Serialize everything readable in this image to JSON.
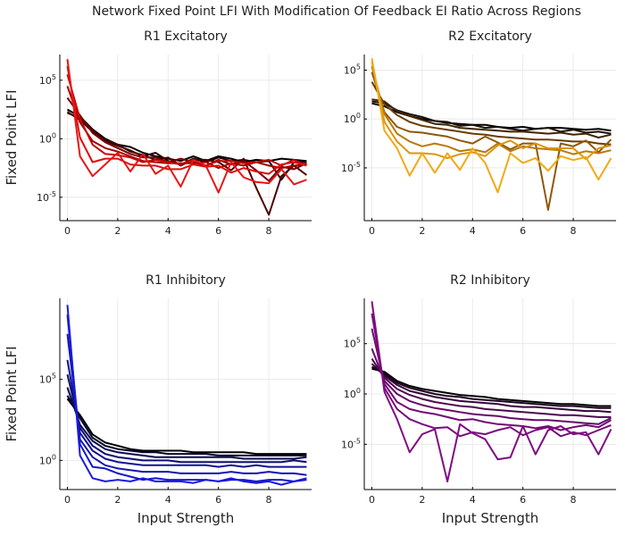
{
  "figure_title": "Network Fixed Point LFI With Modification Of Feedback EI Ratio Across Regions",
  "chart_data": [
    {
      "type": "line",
      "title": "R1 Excitatory",
      "xlabel": "",
      "ylabel": "Fixed Point LFI",
      "yscale": "log10",
      "xlim": [
        -0.3,
        9.7
      ],
      "ylim_log10": [
        -7.0,
        7.2
      ],
      "xticks": [
        "0",
        "2",
        "4",
        "6",
        "8"
      ],
      "yticks": [
        "10^5",
        "10^0",
        "10^-5"
      ],
      "grid": true,
      "x": [
        0,
        0.5,
        1,
        1.5,
        2,
        2.5,
        3,
        3.5,
        4,
        4.5,
        5,
        5.5,
        6,
        6.5,
        7,
        7.5,
        8,
        8.5,
        9,
        9.5
      ],
      "series": [
        {
          "color": "#000000",
          "log10_values": [
            2.5,
            1.9,
            0.8,
            0.0,
            -0.5,
            -0.7,
            -1.2,
            -1.5,
            -1.7,
            -1.9,
            -1.5,
            -1.9,
            -1.5,
            -1.7,
            -2.0,
            -1.8,
            -1.9,
            -1.7,
            -1.8,
            -1.9
          ]
        },
        {
          "color": "#2a0303",
          "log10_values": [
            2.3,
            1.6,
            0.6,
            -0.2,
            -0.6,
            -1.0,
            -1.5,
            -1.2,
            -1.9,
            -2.2,
            -1.7,
            -2.0,
            -1.6,
            -1.9,
            -1.8,
            -2.0,
            -1.9,
            -3.5,
            -2.0,
            -2.0
          ]
        },
        {
          "color": "#4b0000",
          "log10_values": [
            2.2,
            1.8,
            0.7,
            -0.1,
            -0.5,
            -1.1,
            -1.4,
            -1.8,
            -1.6,
            -2.3,
            -1.8,
            -1.8,
            -2.0,
            -2.7,
            -1.7,
            -4.2,
            -6.5,
            -3.2,
            -2.3,
            -3.1
          ]
        },
        {
          "color": "#7a0000",
          "log10_values": [
            3.5,
            2.0,
            0.5,
            -0.3,
            -0.8,
            -1.3,
            -1.6,
            -1.6,
            -2.0,
            -1.7,
            -2.0,
            -2.3,
            -1.8,
            -2.2,
            -1.9,
            -2.7,
            -3.6,
            -2.4,
            -2.6,
            -2.1
          ]
        },
        {
          "color": "#a30000",
          "log10_values": [
            4.5,
            1.4,
            -0.2,
            -0.8,
            -1.1,
            -1.5,
            -1.9,
            -2.0,
            -2.1,
            -2.1,
            -2.1,
            -2.0,
            -2.5,
            -2.1,
            -2.3,
            -2.0,
            -2.3,
            -2.5,
            -2.3,
            -2.2
          ]
        },
        {
          "color": "#c50808",
          "log10_values": [
            5.5,
            1.7,
            -0.5,
            -1.3,
            -1.4,
            -1.6,
            -2.0,
            -1.8,
            -2.0,
            -2.2,
            -1.8,
            -2.3,
            -1.9,
            -1.9,
            -2.1,
            -2.0,
            -1.8,
            -2.3,
            -1.8,
            -2.3
          ]
        },
        {
          "color": "#dc0e0e",
          "log10_values": [
            6.2,
            0.1,
            -2.0,
            -1.7,
            -1.7,
            -2.2,
            -2.3,
            -2.3,
            -2.6,
            -2.6,
            -2.2,
            -2.4,
            -2.3,
            -2.9,
            -2.5,
            -2.8,
            -3.0,
            -2.2,
            -2.0,
            -2.3
          ]
        },
        {
          "color": "#e81515",
          "log10_values": [
            6.8,
            -1.5,
            -3.2,
            -2.2,
            -1.2,
            -2.8,
            -1.3,
            -3.0,
            -2.3,
            -4.1,
            -1.8,
            -2.3,
            -4.6,
            -2.0,
            -3.3,
            -3.7,
            -3.8,
            -2.6,
            -3.9,
            -3.5
          ]
        }
      ]
    },
    {
      "type": "line",
      "title": "R2 Excitatory",
      "xlabel": "",
      "ylabel": "",
      "yscale": "log10",
      "xlim": [
        -0.3,
        9.7
      ],
      "ylim_log10": [
        -10.4,
        6.6
      ],
      "xticks": [
        "0",
        "2",
        "4",
        "6",
        "8"
      ],
      "yticks": [
        "10^5",
        "10^0",
        "10^-5"
      ],
      "grid": true,
      "x": [
        0,
        0.5,
        1,
        1.5,
        2,
        2.5,
        3,
        3.5,
        4,
        4.5,
        5,
        5.5,
        6,
        6.5,
        7,
        7.5,
        8,
        8.5,
        9,
        9.5
      ],
      "series": [
        {
          "color": "#000000",
          "log10_values": [
            1.6,
            1.3,
            0.7,
            0.3,
            0.0,
            -0.2,
            -0.4,
            -0.5,
            -0.6,
            -0.6,
            -0.8,
            -0.9,
            -0.8,
            -1.0,
            -0.9,
            -0.9,
            -1.0,
            -1.1,
            -1.0,
            -1.2
          ]
        },
        {
          "color": "#1f1204",
          "log10_values": [
            1.8,
            1.6,
            0.9,
            0.5,
            0.2,
            -0.2,
            -0.3,
            -0.7,
            -0.6,
            -0.9,
            -0.8,
            -1.0,
            -1.2,
            -1.0,
            -0.9,
            -1.3,
            -1.1,
            -1.4,
            -1.3,
            -1.5
          ]
        },
        {
          "color": "#3f2603",
          "log10_values": [
            2.0,
            1.8,
            0.8,
            0.3,
            -0.1,
            -0.5,
            -0.6,
            -0.9,
            -1.0,
            -1.1,
            -1.2,
            -1.3,
            -1.3,
            -1.4,
            -1.5,
            -1.4,
            -1.6,
            -1.5,
            -1.9,
            -1.6
          ]
        },
        {
          "color": "#6a3e04",
          "log10_values": [
            3.8,
            1.5,
            0.4,
            -0.3,
            -0.7,
            -0.9,
            -1.1,
            -1.3,
            -1.5,
            -1.6,
            -1.8,
            -1.9,
            -2.0,
            -2.1,
            -2.1,
            -2.2,
            -2.3,
            -2.3,
            -2.5,
            -2.6
          ]
        },
        {
          "color": "#8f5806",
          "log10_values": [
            4.8,
            0.7,
            -0.8,
            -1.3,
            -1.4,
            -1.6,
            -1.8,
            -2.2,
            -2.5,
            -1.8,
            -2.4,
            -3.1,
            -2.5,
            -2.5,
            -9.3,
            -2.5,
            -2.8,
            -2.2,
            -3.4,
            -2.1
          ]
        },
        {
          "color": "#b87a08",
          "log10_values": [
            5.4,
            0.5,
            -1.5,
            -2.3,
            -2.8,
            -2.5,
            -2.8,
            -3.3,
            -3.1,
            -3.4,
            -2.5,
            -3.3,
            -2.8,
            -3.0,
            -3.1,
            -3.2,
            -3.6,
            -3.3,
            -3.5,
            -3.2
          ]
        },
        {
          "color": "#dc9510",
          "log10_values": [
            5.9,
            -0.3,
            -2.3,
            -3.5,
            -3.5,
            -3.6,
            -4.0,
            -3.6,
            -3.4,
            -3.8,
            -2.7,
            -2.2,
            -3.0,
            -2.5,
            -3.0,
            -3.0,
            -3.0,
            -4.1,
            -3.0,
            -2.7
          ]
        },
        {
          "color": "#f2a916",
          "log10_values": [
            6.2,
            -1.2,
            -3.0,
            -5.8,
            -3.5,
            -5.5,
            -3.5,
            -5.2,
            -3.0,
            -4.5,
            -7.5,
            -3.5,
            -4.5,
            -4.0,
            -5.3,
            -3.8,
            -4.2,
            -3.9,
            -6.2,
            -4.0
          ]
        }
      ]
    },
    {
      "type": "line",
      "title": "R1 Inhibitory",
      "xlabel": "Input Strength",
      "ylabel": "Fixed Point LFI",
      "yscale": "log10",
      "xlim": [
        -0.3,
        9.7
      ],
      "ylim_log10": [
        -1.8,
        10.0
      ],
      "xticks": [
        "0",
        "2",
        "4",
        "6",
        "8"
      ],
      "yticks": [
        "10^5",
        "10^0"
      ],
      "grid": true,
      "x": [
        0,
        0.5,
        1,
        1.5,
        2,
        2.5,
        3,
        3.5,
        4,
        4.5,
        5,
        5.5,
        6,
        6.5,
        7,
        7.5,
        8,
        8.5,
        9,
        9.5
      ],
      "series": [
        {
          "color": "#000000",
          "log10_values": [
            3.8,
            2.8,
            1.6,
            1.1,
            0.9,
            0.7,
            0.6,
            0.6,
            0.6,
            0.6,
            0.5,
            0.5,
            0.5,
            0.5,
            0.5,
            0.4,
            0.4,
            0.4,
            0.4,
            0.4
          ]
        },
        {
          "color": "#06062c",
          "log10_values": [
            4.0,
            2.6,
            1.4,
            0.9,
            0.7,
            0.6,
            0.5,
            0.5,
            0.4,
            0.4,
            0.4,
            0.4,
            0.3,
            0.3,
            0.3,
            0.3,
            0.3,
            0.3,
            0.3,
            0.3
          ]
        },
        {
          "color": "#0a0a4e",
          "log10_values": [
            4.5,
            2.2,
            1.2,
            0.7,
            0.5,
            0.4,
            0.3,
            0.2,
            0.2,
            0.2,
            0.2,
            0.2,
            0.2,
            0.2,
            0.1,
            0.1,
            0.1,
            0.1,
            0.1,
            0.2
          ]
        },
        {
          "color": "#0e0e70",
          "log10_values": [
            5.3,
            2.0,
            0.9,
            0.4,
            0.2,
            0.1,
            0.0,
            0.0,
            0.0,
            -0.1,
            -0.1,
            -0.1,
            -0.1,
            -0.1,
            -0.1,
            -0.1,
            -0.1,
            -0.1,
            0.0,
            -0.1
          ]
        },
        {
          "color": "#121292",
          "log10_values": [
            6.2,
            1.7,
            0.6,
            0.1,
            -0.1,
            -0.2,
            -0.3,
            -0.3,
            -0.3,
            -0.3,
            -0.3,
            -0.3,
            -0.4,
            -0.3,
            -0.4,
            -0.3,
            -0.4,
            -0.4,
            -0.4,
            -0.4
          ]
        },
        {
          "color": "#1515b2",
          "log10_values": [
            7.8,
            1.3,
            0.2,
            -0.3,
            -0.5,
            -0.6,
            -0.7,
            -0.7,
            -0.7,
            -0.8,
            -0.8,
            -0.8,
            -0.8,
            -0.7,
            -0.8,
            -0.8,
            -0.7,
            -0.8,
            -0.8,
            -0.9
          ]
        },
        {
          "color": "#1616cc",
          "log10_values": [
            9.0,
            1.0,
            -0.4,
            -0.5,
            -0.8,
            -1.0,
            -1.2,
            -1.1,
            -1.2,
            -1.2,
            -1.2,
            -1.2,
            -1.3,
            -1.2,
            -1.2,
            -1.3,
            -1.2,
            -1.2,
            -1.3,
            -1.2
          ]
        },
        {
          "color": "#1a1ae0",
          "log10_values": [
            9.6,
            0.3,
            -1.1,
            -1.3,
            -1.2,
            -1.3,
            -1.1,
            -1.3,
            -1.3,
            -1.3,
            -1.4,
            -1.2,
            -1.3,
            -1.1,
            -1.3,
            -1.4,
            -1.3,
            -1.5,
            -1.3,
            -1.1
          ]
        }
      ]
    },
    {
      "type": "line",
      "title": "R2 Inhibitory",
      "xlabel": "Input Strength",
      "ylabel": "",
      "yscale": "log10",
      "xlim": [
        -0.3,
        9.7
      ],
      "ylim_log10": [
        -9.5,
        9.5
      ],
      "xticks": [
        "0",
        "2",
        "4",
        "6",
        "8"
      ],
      "yticks": [
        "10^5",
        "10^0",
        "10^-5"
      ],
      "grid": true,
      "x": [
        0,
        0.5,
        1,
        1.5,
        2,
        2.5,
        3,
        3.5,
        4,
        4.5,
        5,
        5.5,
        6,
        6.5,
        7,
        7.5,
        8,
        8.5,
        9,
        9.5
      ],
      "series": [
        {
          "color": "#000000",
          "log10_values": [
            2.5,
            2.2,
            1.3,
            0.8,
            0.5,
            0.3,
            0.1,
            -0.1,
            -0.2,
            -0.3,
            -0.5,
            -0.6,
            -0.7,
            -0.8,
            -0.9,
            -1.0,
            -1.0,
            -1.1,
            -1.2,
            -1.2
          ]
        },
        {
          "color": "#1e0220",
          "log10_values": [
            2.7,
            2.0,
            1.1,
            0.6,
            0.3,
            0.0,
            -0.2,
            -0.3,
            -0.5,
            -0.6,
            -0.7,
            -0.8,
            -0.9,
            -1.0,
            -1.1,
            -1.2,
            -1.2,
            -1.3,
            -1.4,
            -1.4
          ]
        },
        {
          "color": "#360538",
          "log10_values": [
            3.0,
            1.8,
            0.9,
            0.3,
            0.0,
            -0.3,
            -0.5,
            -0.7,
            -0.8,
            -0.9,
            -1.0,
            -1.2,
            -1.3,
            -1.3,
            -1.4,
            -1.5,
            -1.6,
            -1.7,
            -1.7,
            -1.8
          ]
        },
        {
          "color": "#4e0850",
          "log10_values": [
            3.5,
            1.6,
            0.5,
            -0.1,
            -0.5,
            -0.8,
            -1.0,
            -1.2,
            -1.3,
            -1.5,
            -1.6,
            -1.7,
            -1.8,
            -1.9,
            -2.0,
            -2.1,
            -2.1,
            -2.2,
            -2.3,
            -2.3
          ]
        },
        {
          "color": "#660a68",
          "log10_values": [
            4.5,
            1.3,
            0.0,
            -0.7,
            -1.1,
            -1.4,
            -1.6,
            -1.8,
            -2.0,
            -2.1,
            -2.2,
            -2.4,
            -2.5,
            -2.6,
            -2.6,
            -2.7,
            -2.8,
            -2.9,
            -3.0,
            -2.4
          ]
        },
        {
          "color": "#700a72",
          "log10_values": [
            6.5,
            1.0,
            -0.8,
            -1.5,
            -1.8,
            -2.0,
            -2.3,
            -2.6,
            -2.5,
            -2.8,
            -3.0,
            -3.1,
            -3.2,
            -3.4,
            -3.2,
            -3.6,
            -3.3,
            -3.1,
            -3.3,
            -2.6
          ]
        },
        {
          "color": "#790b7c",
          "log10_values": [
            8.0,
            0.6,
            -1.5,
            -2.5,
            -3.0,
            -3.4,
            -3.3,
            -4.2,
            -3.8,
            -4.0,
            -3.6,
            -3.3,
            -4.1,
            -3.6,
            -3.3,
            -4.2,
            -3.8,
            -4.1,
            -3.6,
            -3.1
          ]
        },
        {
          "color": "#800c82",
          "log10_values": [
            9.2,
            0.2,
            -2.5,
            -5.8,
            -4.0,
            -3.5,
            -8.7,
            -3.0,
            -3.9,
            -4.5,
            -6.5,
            -6.3,
            -3.2,
            -6.0,
            -3.6,
            -3.2,
            -4.0,
            -3.8,
            -6.0,
            -3.5
          ]
        }
      ]
    }
  ]
}
